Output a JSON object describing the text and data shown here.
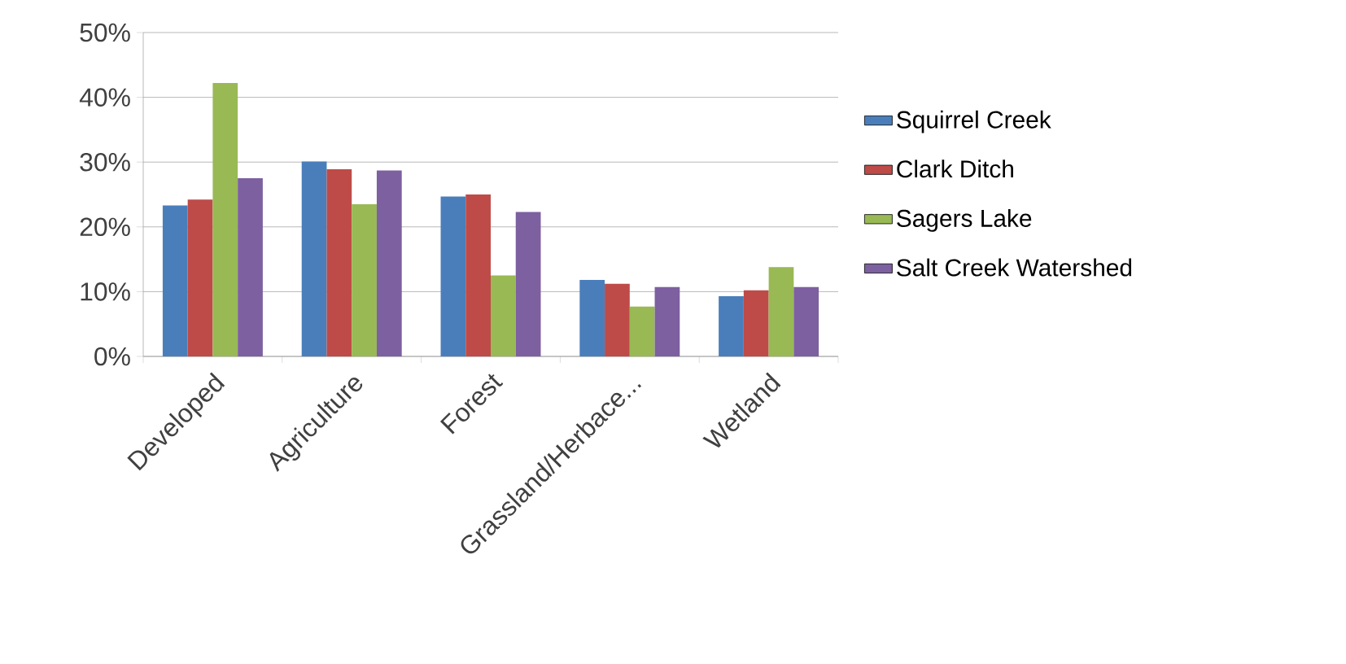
{
  "chart_data": {
    "type": "bar",
    "categories": [
      "Developed",
      "Agriculture",
      "Forest",
      "Grassland/Herbace...",
      "Wetland"
    ],
    "series": [
      {
        "name": "Squirrel Creek",
        "color": "#4a7ebb",
        "values": [
          23.3,
          30.1,
          24.7,
          11.8,
          9.3
        ]
      },
      {
        "name": "Clark Ditch",
        "color": "#be4b48",
        "values": [
          24.2,
          28.9,
          25.0,
          11.2,
          10.2
        ]
      },
      {
        "name": "Sagers Lake",
        "color": "#98b954",
        "values": [
          42.2,
          23.5,
          12.5,
          7.7,
          13.8
        ]
      },
      {
        "name": "Salt Creek Watershed",
        "color": "#7d60a0",
        "values": [
          27.5,
          28.7,
          22.3,
          10.7,
          10.7
        ]
      }
    ],
    "ylim": [
      0,
      50
    ],
    "yticks": [
      {
        "value": 0,
        "label": "0%"
      },
      {
        "value": 10,
        "label": "10%"
      },
      {
        "value": 20,
        "label": "20%"
      },
      {
        "value": 30,
        "label": "30%"
      },
      {
        "value": 40,
        "label": "40%"
      },
      {
        "value": 50,
        "label": "50%"
      }
    ],
    "grid": "y",
    "legend": "right"
  }
}
